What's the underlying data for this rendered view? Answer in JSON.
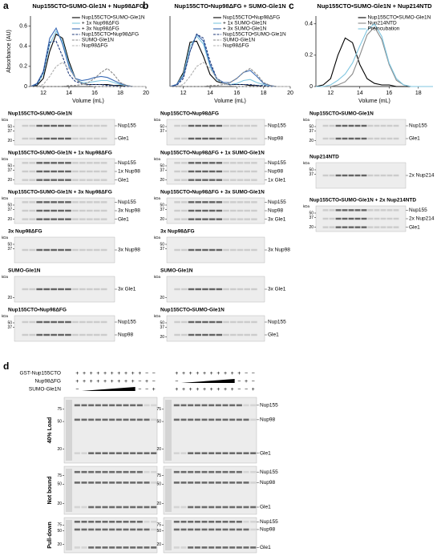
{
  "chart_data": [
    {
      "type": "line",
      "panel": "a",
      "title": "Nup155CTO•SUMO-Gle1N + Nup98ΔFG",
      "xlabel": "Volume (mL)",
      "ylabel": "Absorbance (AU)",
      "x": [
        11,
        11.5,
        12,
        12.5,
        13,
        13.5,
        14,
        14.5,
        15,
        15.5,
        16,
        16.5,
        17,
        17.5,
        18,
        18.5,
        19,
        19.5,
        20
      ],
      "xlim": [
        11,
        20
      ],
      "xticks": [
        12,
        14,
        16,
        18,
        20
      ],
      "ylim": [
        0,
        0.7
      ],
      "yticks": [
        0,
        0.2,
        0.4,
        0.6
      ],
      "series": [
        {
          "name": "Nup155CTO•SUMO-Gle1N",
          "color": "#000000",
          "dashed": false,
          "values": [
            0,
            0.01,
            0.08,
            0.35,
            0.52,
            0.48,
            0.25,
            0.08,
            0.03,
            0.02,
            0.02,
            0.02,
            0.02,
            0.01,
            0.01,
            0,
            0,
            0,
            0
          ]
        },
        {
          "name": "+ 1x Nup98ΔFG",
          "color": "#7fc6e0",
          "dashed": false,
          "values": [
            0,
            0.02,
            0.12,
            0.42,
            0.55,
            0.45,
            0.22,
            0.08,
            0.04,
            0.04,
            0.05,
            0.06,
            0.06,
            0.04,
            0.02,
            0.01,
            0,
            0,
            0
          ]
        },
        {
          "name": "+ 3x Nup98ΔFG",
          "color": "#3b6bb5",
          "dashed": false,
          "values": [
            0,
            0.03,
            0.15,
            0.48,
            0.58,
            0.42,
            0.2,
            0.08,
            0.06,
            0.07,
            0.09,
            0.1,
            0.09,
            0.06,
            0.03,
            0.01,
            0,
            0,
            0
          ]
        },
        {
          "name": "Nup155CTO•Nup98ΔFG",
          "color": "#1f3a7a",
          "dashed": true,
          "values": [
            0,
            0.02,
            0.14,
            0.44,
            0.45,
            0.3,
            0.12,
            0.05,
            0.03,
            0.02,
            0.02,
            0.02,
            0.01,
            0.01,
            0,
            0,
            0,
            0,
            0
          ]
        },
        {
          "name": "SUMO-Gle1N",
          "color": "#888888",
          "dashed": true,
          "values": [
            0,
            0,
            0,
            0,
            0,
            0,
            0.01,
            0.01,
            0.02,
            0.04,
            0.08,
            0.14,
            0.18,
            0.12,
            0.04,
            0.01,
            0,
            0,
            0
          ]
        },
        {
          "name": "Nup98ΔFG",
          "color": "#b0b0b0",
          "dashed": true,
          "values": [
            0,
            0,
            0.02,
            0.1,
            0.2,
            0.24,
            0.18,
            0.08,
            0.03,
            0.01,
            0,
            0,
            0,
            0,
            0,
            0,
            0,
            0,
            0
          ]
        }
      ]
    },
    {
      "type": "line",
      "panel": "b",
      "title": "Nup155CTO•Nup98ΔFG + SUMO-Gle1N",
      "xlabel": "Volume (mL)",
      "x": [
        11,
        11.5,
        12,
        12.5,
        13,
        13.5,
        14,
        14.5,
        15,
        15.5,
        16,
        16.5,
        17,
        17.5,
        18,
        18.5,
        19,
        19.5,
        20
      ],
      "xlim": [
        11,
        20
      ],
      "xticks": [
        12,
        14,
        16,
        18,
        20
      ],
      "ylim": [
        0,
        0.7
      ],
      "series": [
        {
          "name": "Nup155CTO•Nup98ΔFG",
          "color": "#000000",
          "dashed": false,
          "values": [
            0,
            0.02,
            0.14,
            0.44,
            0.45,
            0.3,
            0.12,
            0.05,
            0.03,
            0.02,
            0.02,
            0.02,
            0.01,
            0.01,
            0,
            0,
            0,
            0,
            0
          ]
        },
        {
          "name": "+ 1x SUMO-Gle1N",
          "color": "#7fc6e0",
          "dashed": false,
          "values": [
            0,
            0.02,
            0.12,
            0.4,
            0.5,
            0.42,
            0.2,
            0.07,
            0.03,
            0.02,
            0.03,
            0.06,
            0.07,
            0.04,
            0.02,
            0,
            0,
            0,
            0
          ]
        },
        {
          "name": "+ 3x SUMO-Gle1N",
          "color": "#3b6bb5",
          "dashed": false,
          "values": [
            0,
            0.02,
            0.1,
            0.35,
            0.52,
            0.45,
            0.22,
            0.08,
            0.04,
            0.04,
            0.08,
            0.14,
            0.16,
            0.1,
            0.03,
            0.01,
            0,
            0,
            0
          ]
        },
        {
          "name": "Nup155CTO•SUMO-Gle1N",
          "color": "#1f3a7a",
          "dashed": true,
          "values": [
            0,
            0.01,
            0.08,
            0.35,
            0.52,
            0.48,
            0.25,
            0.08,
            0.03,
            0.02,
            0.02,
            0.02,
            0.02,
            0.01,
            0.01,
            0,
            0,
            0,
            0
          ]
        },
        {
          "name": "SUMO-Gle1N",
          "color": "#888888",
          "dashed": true,
          "values": [
            0,
            0,
            0,
            0,
            0,
            0,
            0.01,
            0.01,
            0.02,
            0.04,
            0.08,
            0.14,
            0.18,
            0.12,
            0.04,
            0.01,
            0,
            0,
            0
          ]
        },
        {
          "name": "Nup98ΔFG",
          "color": "#b0b0b0",
          "dashed": true,
          "values": [
            0,
            0,
            0.02,
            0.1,
            0.2,
            0.24,
            0.18,
            0.08,
            0.03,
            0.01,
            0,
            0,
            0,
            0,
            0,
            0,
            0,
            0,
            0
          ]
        }
      ]
    },
    {
      "type": "line",
      "panel": "c",
      "title": "Nup155CTO•SUMO-Gle1N + Nup214NTD",
      "xlabel": "Volume (mL)",
      "x": [
        11,
        11.5,
        12,
        12.5,
        13,
        13.5,
        14,
        14.5,
        15,
        15.5,
        16,
        16.5,
        17,
        17.5,
        18,
        18.5,
        19
      ],
      "xlim": [
        11,
        19
      ],
      "xticks": [
        12,
        14,
        16,
        18
      ],
      "ylim": [
        0,
        0.45
      ],
      "yticks": [
        0,
        0.2,
        0.4
      ],
      "series": [
        {
          "name": "Nup155CTO•SUMO-Gle1N",
          "color": "#000000",
          "dashed": false,
          "values": [
            0,
            0.01,
            0.05,
            0.2,
            0.31,
            0.28,
            0.14,
            0.05,
            0.02,
            0.01,
            0.01,
            0,
            0,
            0,
            0,
            0,
            0
          ]
        },
        {
          "name": "Nup214NTD",
          "color": "#888888",
          "dashed": false,
          "values": [
            0,
            0,
            0,
            0.01,
            0.03,
            0.08,
            0.2,
            0.33,
            0.38,
            0.3,
            0.14,
            0.04,
            0.01,
            0,
            0,
            0,
            0
          ]
        },
        {
          "name": "Preincubation",
          "color": "#7fc6e0",
          "dashed": false,
          "values": [
            0,
            0,
            0.01,
            0.04,
            0.08,
            0.15,
            0.26,
            0.36,
            0.4,
            0.32,
            0.15,
            0.05,
            0.01,
            0,
            0,
            0,
            0
          ]
        }
      ]
    }
  ],
  "gel_unit": "kDa",
  "gels": {
    "a": [
      {
        "title": "Nup155CTO•SUMO-Gle1N",
        "kda": [
          50,
          37,
          20
        ],
        "bands": [
          "Nup155",
          "Gle1"
        ]
      },
      {
        "title": "Nup155CTO•SUMO-Gle1N + 1x Nup98ΔFG",
        "kda": [
          50,
          37,
          20
        ],
        "bands": [
          "Nup155",
          "1x Nup98",
          "Gle1"
        ]
      },
      {
        "title": "Nup155CTO•SUMO-Gle1N + 3x Nup98ΔFG",
        "kda": [
          50,
          37,
          20
        ],
        "bands": [
          "Nup155",
          "3x Nup98",
          "Gle1"
        ]
      },
      {
        "title": "3x Nup98ΔFG",
        "kda": [
          50,
          37
        ],
        "bands": [
          "3x Nup98"
        ]
      },
      {
        "title": "SUMO-Gle1N",
        "kda": [
          20
        ],
        "bands": [
          "3x Gle1"
        ]
      },
      {
        "title": "Nup155CTO•Nup98ΔFG",
        "kda": [
          50,
          37
        ],
        "bands": [
          "Nup155",
          "Nup98"
        ]
      }
    ],
    "b": [
      {
        "title": "Nup155CTO•Nup98ΔFG",
        "kda": [
          50,
          37
        ],
        "bands": [
          "Nup155",
          "Nup98"
        ]
      },
      {
        "title": "Nup155CTO•Nup98ΔFG + 1x SUMO-Gle1N",
        "kda": [
          50,
          37,
          20
        ],
        "bands": [
          "Nup155",
          "Nup98",
          "1x Gle1"
        ]
      },
      {
        "title": "Nup155CTO•Nup98ΔFG + 3x SUMO-Gle1N",
        "kda": [
          50,
          37,
          20
        ],
        "bands": [
          "Nup155",
          "Nup98",
          "3x Gle1"
        ]
      },
      {
        "title": "3x Nup98ΔFG",
        "kda": [
          50,
          37
        ],
        "bands": [
          "3x Nup98"
        ]
      },
      {
        "title": "SUMO-Gle1N",
        "kda": [
          20
        ],
        "bands": [
          "3x Gle1"
        ]
      },
      {
        "title": "Nup155CTO•SUMO-Gle1N",
        "kda": [
          50,
          37,
          20
        ],
        "bands": [
          "Nup155",
          "Gle1"
        ]
      }
    ],
    "c": [
      {
        "title": "Nup155CTO•SUMO-Gle1N",
        "kda": [
          50,
          37,
          20
        ],
        "bands": [
          "Nup155",
          "Gle1"
        ]
      },
      {
        "title": "Nup214NTD",
        "kda": [
          50,
          37
        ],
        "bands": [
          "2x Nup214"
        ]
      },
      {
        "title": "Nup155CTO•SUMO-Gle1N + 2x Nup214NTD",
        "kda": [
          50,
          37,
          20
        ],
        "bands": [
          "Nup155",
          "2x Nup214",
          "Gle1"
        ]
      }
    ]
  },
  "panel_d": {
    "label": "d",
    "row_headers": [
      "GST-Nup155CTO",
      "Nup98ΔFG",
      "SUMO-Gle1N"
    ],
    "left": {
      "wedge_row": 2,
      "signs": [
        [
          "+",
          "+",
          "+",
          "+",
          "+",
          "+",
          "+",
          "+",
          "+",
          "+",
          "−",
          "−"
        ],
        [
          "+",
          "+",
          "+",
          "+",
          "+",
          "+",
          "+",
          "+",
          "+",
          "−",
          "+",
          "−"
        ],
        [
          "−",
          "−",
          "−",
          "+"
        ]
      ]
    },
    "right": {
      "wedge_row": 1,
      "signs": [
        [
          "+",
          "+",
          "+",
          "+",
          "+",
          "+",
          "+",
          "+",
          "+",
          "+",
          "−",
          "−"
        ],
        [
          "−",
          "−",
          "+",
          "−"
        ],
        [
          "+",
          "+",
          "+",
          "+",
          "+",
          "+",
          "+",
          "+",
          "+",
          "−",
          "−",
          "+"
        ]
      ]
    },
    "sections": [
      "40% Load",
      "Not bound",
      "Pull-down"
    ],
    "kda": [
      75,
      50,
      20
    ],
    "bands": [
      "Nup155",
      "Nup98",
      "Gle1"
    ]
  }
}
